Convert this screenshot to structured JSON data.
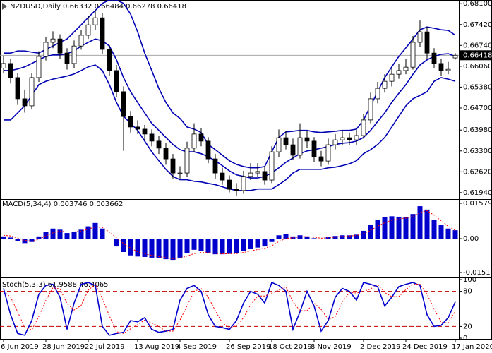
{
  "chart_data": [
    {
      "type": "candlestick",
      "title": "NZDUSD,Daily  0.66332 0.66484 0.66278 0.66418",
      "up_fill": "#ffffff",
      "down_fill": "#000000",
      "color": "#000000",
      "open": [
        0.66,
        0.6615,
        0.6569,
        0.65,
        0.6477,
        0.6569,
        0.6638,
        0.6684,
        0.6695,
        0.6649,
        0.6615,
        0.6672,
        0.6707,
        0.6741,
        0.6764,
        0.6661,
        0.6592,
        0.6523,
        0.6442,
        0.6408,
        0.6401,
        0.6385,
        0.6362,
        0.6339,
        0.6304,
        0.6258,
        0.6258,
        0.6339,
        0.6385,
        0.6362,
        0.6304,
        0.6258,
        0.6235,
        0.6205,
        0.6201,
        0.6247,
        0.6258,
        0.6263,
        0.6235,
        0.6327,
        0.6373,
        0.635,
        0.6316,
        0.6373,
        0.6362,
        0.6311,
        0.6297,
        0.635,
        0.6366,
        0.6373,
        0.6366,
        0.638,
        0.6431,
        0.65,
        0.6534,
        0.6557,
        0.658,
        0.6592,
        0.6603,
        0.6684,
        0.6718,
        0.6649,
        0.6615,
        0.6592,
        0.66332
      ],
      "high": [
        0.664,
        0.663,
        0.6585,
        0.653,
        0.6585,
        0.6655,
        0.67,
        0.672,
        0.671,
        0.6665,
        0.669,
        0.6725,
        0.677,
        0.679,
        0.678,
        0.6675,
        0.661,
        0.654,
        0.646,
        0.643,
        0.6415,
        0.64,
        0.638,
        0.6355,
        0.632,
        0.628,
        0.636,
        0.642,
        0.6405,
        0.6375,
        0.632,
        0.6275,
        0.625,
        0.6225,
        0.6265,
        0.629,
        0.629,
        0.628,
        0.6345,
        0.64,
        0.6395,
        0.637,
        0.642,
        0.6395,
        0.6375,
        0.633,
        0.637,
        0.6385,
        0.6395,
        0.639,
        0.64,
        0.645,
        0.652,
        0.6555,
        0.658,
        0.66,
        0.6615,
        0.663,
        0.6705,
        0.6755,
        0.6735,
        0.6665,
        0.663,
        0.662,
        0.66484
      ],
      "low": [
        0.6585,
        0.655,
        0.648,
        0.6455,
        0.6465,
        0.6555,
        0.6625,
        0.6665,
        0.663,
        0.6595,
        0.66,
        0.666,
        0.6695,
        0.6725,
        0.6645,
        0.6575,
        0.6505,
        0.633,
        0.639,
        0.6385,
        0.6365,
        0.6345,
        0.632,
        0.6285,
        0.624,
        0.624,
        0.6245,
        0.6325,
        0.6345,
        0.629,
        0.624,
        0.622,
        0.6195,
        0.6185,
        0.619,
        0.6235,
        0.6245,
        0.622,
        0.6225,
        0.631,
        0.6335,
        0.63,
        0.6305,
        0.634,
        0.6295,
        0.628,
        0.6285,
        0.6335,
        0.635,
        0.635,
        0.635,
        0.637,
        0.642,
        0.6485,
        0.652,
        0.654,
        0.6565,
        0.658,
        0.6595,
        0.667,
        0.663,
        0.66,
        0.6575,
        0.658,
        0.66278
      ],
      "close": [
        0.6615,
        0.6569,
        0.65,
        0.6477,
        0.6569,
        0.6638,
        0.6684,
        0.6695,
        0.6649,
        0.6615,
        0.6672,
        0.6707,
        0.6741,
        0.6764,
        0.6661,
        0.6592,
        0.6523,
        0.6442,
        0.6408,
        0.6401,
        0.6385,
        0.6362,
        0.6339,
        0.6304,
        0.6258,
        0.6258,
        0.6339,
        0.6385,
        0.6362,
        0.6304,
        0.6258,
        0.6235,
        0.6205,
        0.6201,
        0.6247,
        0.6258,
        0.6263,
        0.6235,
        0.6327,
        0.6373,
        0.635,
        0.6316,
        0.6373,
        0.6362,
        0.6311,
        0.6297,
        0.635,
        0.6366,
        0.6373,
        0.6366,
        0.638,
        0.6431,
        0.65,
        0.6534,
        0.6557,
        0.658,
        0.6592,
        0.6603,
        0.6684,
        0.6718,
        0.6649,
        0.6615,
        0.6592,
        0.6596,
        0.66418
      ],
      "bands": {
        "color": "#0000b4",
        "upper": [
          0.6649,
          0.6649,
          0.6656,
          0.6656,
          0.6652,
          0.6649,
          0.6661,
          0.6672,
          0.6684,
          0.6695,
          0.6718,
          0.6741,
          0.6765,
          0.6788,
          0.6811,
          0.6822,
          0.6822,
          0.6811,
          0.6776,
          0.6718,
          0.6649,
          0.6592,
          0.6534,
          0.6488,
          0.6454,
          0.6436,
          0.6408,
          0.6401,
          0.639,
          0.6351,
          0.6334,
          0.6316,
          0.6298,
          0.6286,
          0.6279,
          0.6275,
          0.6275,
          0.6279,
          0.6327,
          0.6374,
          0.6392,
          0.6394,
          0.6397,
          0.6397,
          0.6392,
          0.639,
          0.6392,
          0.6394,
          0.6397,
          0.6397,
          0.6401,
          0.6431,
          0.6477,
          0.6523,
          0.6569,
          0.6604,
          0.6638,
          0.6666,
          0.6695,
          0.6725,
          0.6734,
          0.673,
          0.6725,
          0.6723,
          0.6707
        ],
        "middle": [
          0.6592,
          0.6592,
          0.6597,
          0.6604,
          0.6615,
          0.6627,
          0.6638,
          0.6643,
          0.6643,
          0.6647,
          0.6656,
          0.6672,
          0.6684,
          0.6695,
          0.6689,
          0.6672,
          0.6627,
          0.6569,
          0.6523,
          0.6488,
          0.6454,
          0.642,
          0.6397,
          0.6374,
          0.6351,
          0.6334,
          0.6327,
          0.6327,
          0.6321,
          0.6311,
          0.6298,
          0.6282,
          0.6265,
          0.6252,
          0.6247,
          0.6242,
          0.6242,
          0.6247,
          0.6258,
          0.6275,
          0.6293,
          0.6307,
          0.6321,
          0.633,
          0.6334,
          0.6339,
          0.6344,
          0.6351,
          0.6355,
          0.6357,
          0.6362,
          0.6374,
          0.6397,
          0.6426,
          0.6454,
          0.6488,
          0.6518,
          0.6546,
          0.658,
          0.661,
          0.6627,
          0.6638,
          0.6645,
          0.6647,
          0.6638
        ],
        "lower": [
          0.6431,
          0.6431,
          0.6454,
          0.6477,
          0.6511,
          0.6546,
          0.6557,
          0.6564,
          0.6569,
          0.6574,
          0.6581,
          0.6592,
          0.6604,
          0.661,
          0.6592,
          0.6546,
          0.6488,
          0.6443,
          0.642,
          0.6397,
          0.6362,
          0.6327,
          0.6298,
          0.627,
          0.6247,
          0.6236,
          0.6236,
          0.6231,
          0.6229,
          0.6224,
          0.622,
          0.6213,
          0.6206,
          0.6201,
          0.6201,
          0.6201,
          0.6206,
          0.6206,
          0.6206,
          0.622,
          0.6236,
          0.6258,
          0.627,
          0.627,
          0.627,
          0.627,
          0.6275,
          0.6277,
          0.6282,
          0.6288,
          0.6298,
          0.6321,
          0.6334,
          0.6351,
          0.6374,
          0.6408,
          0.6443,
          0.6477,
          0.65,
          0.6511,
          0.6523,
          0.6557,
          0.6569,
          0.6564,
          0.6557
        ]
      },
      "last_price": 0.66418,
      "ylim": [
        0.6173,
        0.6822
      ],
      "yticks": [
        {
          "value": 0.681,
          "label": "0.68100"
        },
        {
          "value": 0.6742,
          "label": "0.67420"
        },
        {
          "value": 0.6674,
          "label": "0.66740"
        },
        {
          "value": 0.6606,
          "label": "0.66060"
        },
        {
          "value": 0.6538,
          "label": "0.65380"
        },
        {
          "value": 0.647,
          "label": "0.64700"
        },
        {
          "value": 0.6398,
          "label": "0.63980"
        },
        {
          "value": 0.633,
          "label": "0.63300"
        },
        {
          "value": 0.6262,
          "label": "0.62620"
        },
        {
          "value": 0.6194,
          "label": "0.61940"
        }
      ]
    },
    {
      "type": "macd",
      "title": "MACD(5,34,4) 0.003746 0.003662",
      "series": [
        {
          "style": "histogram",
          "color": "#0000cd",
          "values": [
            0.001,
            0.0005,
            -0.001,
            -0.002,
            -0.0015,
            0.001,
            0.003,
            0.0045,
            0.004,
            0.0025,
            0.003,
            0.004,
            0.0055,
            0.007,
            0.0045,
            0.0,
            -0.0035,
            -0.006,
            -0.0075,
            -0.008,
            -0.0082,
            -0.0085,
            -0.0088,
            -0.0092,
            -0.0095,
            -0.0085,
            -0.0065,
            -0.005,
            -0.0055,
            -0.0065,
            -0.007,
            -0.007,
            -0.0068,
            -0.0065,
            -0.0055,
            -0.0045,
            -0.004,
            -0.0035,
            -0.0015,
            0.0015,
            0.002,
            0.001,
            0.0015,
            0.001,
            0.0002,
            -0.0003,
            0.0008,
            0.0012,
            0.0015,
            0.0015,
            0.0018,
            0.0035,
            0.006,
            0.0085,
            0.0095,
            0.01,
            0.0098,
            0.0095,
            0.011,
            0.0145,
            0.013,
            0.0085,
            0.0062,
            0.0045,
            0.003746
          ]
        },
        {
          "style": "dotted",
          "color": "#ff0000",
          "values": [
            0.0015,
            0.0012,
            0.0003,
            -0.0008,
            -0.0012,
            -0.0003,
            0.0012,
            0.0026,
            0.0034,
            0.003,
            0.003,
            0.0034,
            0.0042,
            0.0053,
            0.005,
            0.003,
            0.0004,
            -0.0022,
            -0.0043,
            -0.0058,
            -0.0068,
            -0.0075,
            -0.008,
            -0.0085,
            -0.0089,
            -0.0087,
            -0.0078,
            -0.0067,
            -0.0062,
            -0.0063,
            -0.0066,
            -0.0068,
            -0.0068,
            -0.0067,
            -0.0062,
            -0.0055,
            -0.0049,
            -0.0043,
            -0.0032,
            -0.0013,
            0.0,
            0.0004,
            0.0008,
            0.0009,
            0.0006,
            0.0002,
            0.0004,
            0.0007,
            0.001,
            0.0012,
            0.0014,
            0.0022,
            0.0037,
            0.0056,
            0.0071,
            0.0083,
            0.0089,
            0.0092,
            0.0099,
            0.0117,
            0.0125,
            0.0105,
            0.008,
            0.0055,
            0.003662
          ]
        }
      ],
      "ylim": [
        -0.01516,
        0.015793
      ],
      "yticks": [
        0.015793,
        {
          "value": 0,
          "label": "0.00"
        },
        -0.01516
      ]
    },
    {
      "type": "stoch",
      "title": "Stoch(5,3,3) 61.9588 46.4065",
      "categories": [
        "6 Jun 2019",
        null,
        null,
        null,
        null,
        null,
        "28 Jun 2019",
        null,
        null,
        null,
        null,
        null,
        "22 Jul 2019",
        null,
        null,
        null,
        null,
        null,
        null,
        "13 Aug 2019",
        null,
        null,
        null,
        null,
        null,
        "4 Sep 2019",
        null,
        null,
        null,
        null,
        null,
        null,
        "26 Sep 2019",
        null,
        null,
        null,
        null,
        null,
        "18 Oct 2019",
        null,
        null,
        null,
        null,
        null,
        "8 Nov 2019",
        null,
        null,
        null,
        null,
        null,
        null,
        "2 Dec 2019",
        null,
        null,
        null,
        null,
        null,
        "24 Dec 2019",
        null,
        null,
        null,
        null,
        null,
        null,
        "17 Jan 2020"
      ],
      "series": [
        {
          "style": "solid",
          "color": "#0000cd",
          "values": [
            85,
            40,
            8,
            5,
            30,
            75,
            90,
            92,
            70,
            15,
            60,
            92,
            95,
            90,
            20,
            5,
            8,
            10,
            30,
            28,
            35,
            15,
            10,
            12,
            15,
            65,
            85,
            90,
            80,
            40,
            20,
            18,
            15,
            30,
            60,
            80,
            75,
            60,
            95,
            90,
            80,
            15,
            45,
            80,
            55,
            12,
            30,
            70,
            85,
            80,
            65,
            95,
            92,
            88,
            55,
            70,
            88,
            92,
            95,
            90,
            40,
            20,
            22,
            35,
            61.9588
          ]
        },
        {
          "style": "dotted",
          "color": "#ff0000",
          "values": [
            80,
            70,
            45,
            18,
            14,
            37,
            65,
            86,
            84,
            59,
            48,
            56,
            82,
            92,
            68,
            38,
            11,
            8,
            16,
            23,
            31,
            26,
            20,
            12,
            12,
            31,
            55,
            80,
            85,
            70,
            47,
            26,
            18,
            21,
            35,
            57,
            72,
            72,
            77,
            82,
            88,
            62,
            47,
            47,
            60,
            49,
            32,
            37,
            62,
            78,
            77,
            80,
            84,
            92,
            78,
            71,
            71,
            83,
            92,
            92,
            75,
            50,
            27,
            26,
            46.4065
          ]
        }
      ],
      "levels": [
        80,
        20
      ],
      "level_color": "#c00000",
      "ylim": [
        0,
        100
      ],
      "yticks": [
        100,
        80,
        20,
        0
      ]
    }
  ]
}
